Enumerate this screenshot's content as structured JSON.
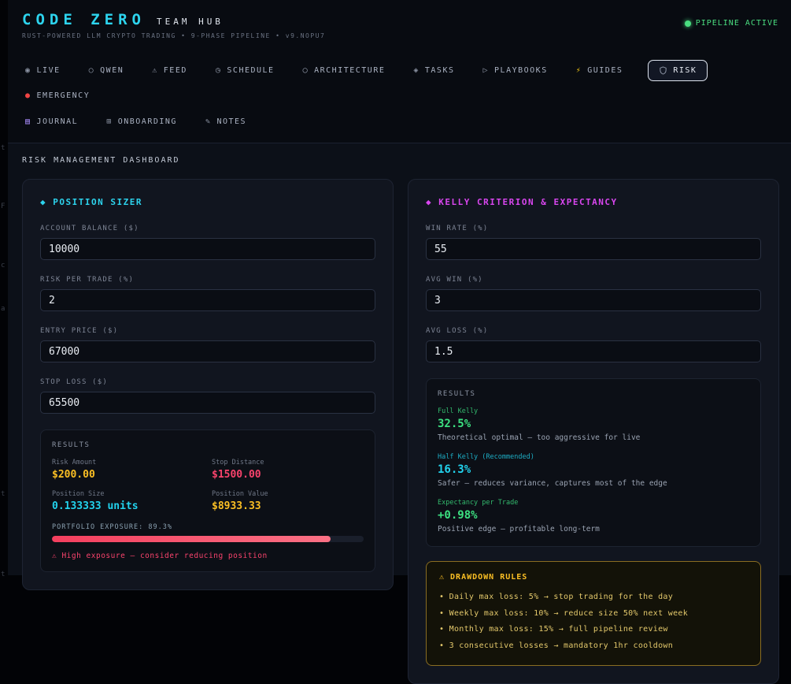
{
  "edge": [
    "t",
    "F",
    "c",
    "a",
    "t",
    "t"
  ],
  "header": {
    "title": "CODE ZERO",
    "brand_sub": "TEAM HUB",
    "tagline": "RUST-POWERED LLM CRYPTO TRADING • 9-PHASE PIPELINE • v9.NOPU7",
    "status": {
      "label": "PIPELINE ACTIVE",
      "color": "#4ade80"
    }
  },
  "nav": {
    "active_tab": "RISK",
    "tabs": [
      {
        "label": "LIVE",
        "icon": "◉"
      },
      {
        "label": "QWEN",
        "icon": "○"
      },
      {
        "label": "FEED",
        "icon": "⚠"
      },
      {
        "label": "SCHEDULE",
        "icon": "◷"
      },
      {
        "label": "ARCHITECTURE",
        "icon": "◯"
      },
      {
        "label": "TASKS",
        "icon": "◈"
      },
      {
        "label": "PLAYBOOKS",
        "icon": "▷"
      },
      {
        "label": "GUIDES",
        "icon": "⚡"
      },
      {
        "label": "RISK",
        "icon": "shield"
      },
      {
        "label": "EMERGENCY",
        "icon": "●"
      },
      {
        "label": "JOURNAL",
        "icon": "▤"
      },
      {
        "label": "ONBOARDING",
        "icon": "⊞"
      },
      {
        "label": "NOTES",
        "icon": "✎"
      }
    ]
  },
  "section_title": "RISK MANAGEMENT DASHBOARD",
  "position_sizer": {
    "title": "◆ POSITION SIZER",
    "accent_color": "#2dd4ee",
    "fields": [
      {
        "label": "ACCOUNT BALANCE ($)",
        "value": "10000"
      },
      {
        "label": "RISK PER TRADE (%)",
        "value": "2"
      },
      {
        "label": "ENTRY PRICE ($)",
        "value": "67000"
      },
      {
        "label": "STOP LOSS ($)",
        "value": "65500"
      }
    ],
    "results": {
      "title": "RESULTS",
      "metrics": [
        {
          "label": "Risk Amount",
          "value": "$200.00",
          "color": "#fbbf24"
        },
        {
          "label": "Stop Distance",
          "value": "$1500.00",
          "color": "#f8436c"
        },
        {
          "label": "Position Size",
          "value": "0.133333 units",
          "color": "#22d3ee"
        },
        {
          "label": "Position Value",
          "value": "$8933.33",
          "color": "#fbbf24"
        }
      ],
      "exposure_label": "PORTFOLIO EXPOSURE: 89.3%",
      "exposure_pct": 89.3,
      "bar_color": "#f43f5e",
      "warning": "⚠ High exposure — consider reducing position"
    }
  },
  "kelly": {
    "title": "◆ KELLY CRITERION & EXPECTANCY",
    "accent_color": "#d946ef",
    "fields": [
      {
        "label": "WIN RATE (%)",
        "value": "55"
      },
      {
        "label": "AVG WIN (%)",
        "value": "3"
      },
      {
        "label": "AVG LOSS (%)",
        "value": "1.5"
      }
    ],
    "results": {
      "title": "RESULTS",
      "items": [
        {
          "label": "Full Kelly",
          "value": "32.5%",
          "desc": "Theoretical optimal — too aggressive for live",
          "color": "#3ce081"
        },
        {
          "label": "Half Kelly (Recommended)",
          "value": "16.3%",
          "desc": "Safer — reduces variance, captures most of the edge",
          "color": "#22d3ee"
        },
        {
          "label": "Expectancy per Trade",
          "value": "+0.98%",
          "desc": "Positive edge — profitable long-term",
          "color": "#3ce081"
        }
      ]
    },
    "drawdown": {
      "title": "⚠ DRAWDOWN RULES",
      "rules": [
        "• Daily max loss: 5% → stop trading for the day",
        "• Weekly max loss: 10% → reduce size 50% next week",
        "• Monthly max loss: 15% → full pipeline review",
        "• 3 consecutive losses → mandatory 1hr cooldown"
      ]
    }
  }
}
